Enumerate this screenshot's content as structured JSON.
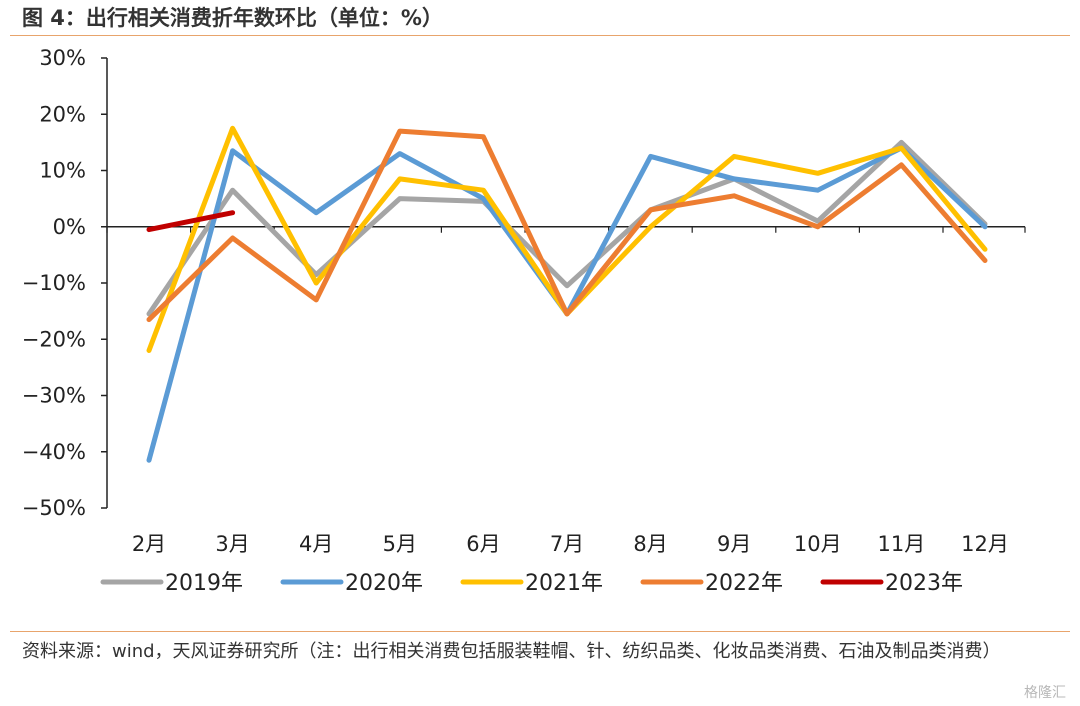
{
  "title": "图 4：出行相关消费折年数环比（单位：%）",
  "source": "资料来源：wind，天风证券研究所（注：出行相关消费包括服装鞋帽、针、纺织品类、化妆品类消费、石油及制品类消费）",
  "watermark": "格隆汇",
  "chart_data": {
    "type": "line",
    "title": "图 4：出行相关消费折年数环比（单位：%）",
    "xlabel": "",
    "ylabel": "",
    "categories": [
      "2月",
      "3月",
      "4月",
      "5月",
      "6月",
      "7月",
      "8月",
      "9月",
      "10月",
      "11月",
      "12月"
    ],
    "ylim": [
      -50,
      30
    ],
    "yticks": [
      30,
      20,
      10,
      0,
      -10,
      -20,
      -30,
      -40,
      -50
    ],
    "ytick_labels": [
      "30%",
      "20%",
      "10%",
      "0%",
      "-10%",
      "-20%",
      "-30%",
      "-40%",
      "-50%"
    ],
    "grid": false,
    "legend_position": "bottom",
    "series": [
      {
        "name": "2019年",
        "color": "#a5a5a5",
        "values": [
          -15.5,
          6.5,
          -8.5,
          5,
          4.5,
          -10.5,
          3,
          8.5,
          1,
          15,
          0.5
        ]
      },
      {
        "name": "2020年",
        "color": "#5b9bd5",
        "values": [
          -41.5,
          13.5,
          2.5,
          13,
          5,
          -15.5,
          12.5,
          8.5,
          6.5,
          14,
          0
        ]
      },
      {
        "name": "2021年",
        "color": "#ffc000",
        "values": [
          -22,
          17.5,
          -10,
          8.5,
          6.5,
          -15.5,
          0,
          12.5,
          9.5,
          14,
          -4
        ]
      },
      {
        "name": "2022年",
        "color": "#ed7d31",
        "values": [
          -16.5,
          -2,
          -13,
          17,
          16,
          -15.5,
          3,
          5.5,
          0,
          11,
          -6
        ]
      },
      {
        "name": "2023年",
        "color": "#c00000",
        "values": [
          -0.5,
          2.5,
          null,
          null,
          null,
          null,
          null,
          null,
          null,
          null,
          null
        ]
      }
    ]
  }
}
